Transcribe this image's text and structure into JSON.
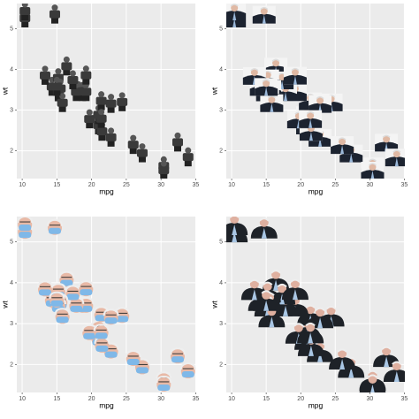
{
  "chart_data": [
    {
      "type": "scatter",
      "marker": "standing-figure",
      "xlabel": "mpg",
      "ylabel": "wt",
      "x": [
        21,
        21,
        22.8,
        21.4,
        18.7,
        18.1,
        14.3,
        24.4,
        22.8,
        19.2,
        17.8,
        16.4,
        17.3,
        15.2,
        10.4,
        10.4,
        14.7,
        32.4,
        30.4,
        33.9,
        21.5,
        15.5,
        15.2,
        13.3,
        19.2,
        27.3,
        26,
        30.4,
        15.8,
        19.7,
        15,
        21.4
      ],
      "y": [
        2.62,
        2.875,
        2.32,
        3.215,
        3.44,
        3.46,
        3.57,
        3.19,
        3.15,
        3.44,
        3.44,
        4.07,
        3.73,
        3.78,
        5.25,
        5.424,
        5.345,
        2.2,
        1.615,
        1.835,
        2.465,
        3.52,
        3.435,
        3.84,
        3.845,
        1.935,
        2.14,
        1.513,
        3.17,
        2.77,
        3.57,
        2.78
      ],
      "xlim": [
        9.225,
        35.075
      ],
      "ylim": [
        1.31745,
        5.61955
      ],
      "xticks": [
        10,
        15,
        20,
        25,
        30,
        35
      ],
      "yticks": [
        2,
        3,
        4,
        5
      ],
      "grid": true
    },
    {
      "type": "scatter",
      "marker": "portrait",
      "xlabel": "mpg",
      "ylabel": "wt",
      "x": [
        21,
        21,
        22.8,
        21.4,
        18.7,
        18.1,
        14.3,
        24.4,
        22.8,
        19.2,
        17.8,
        16.4,
        17.3,
        15.2,
        10.4,
        10.4,
        14.7,
        32.4,
        30.4,
        33.9,
        21.5,
        15.5,
        15.2,
        13.3,
        19.2,
        27.3,
        26,
        30.4,
        15.8,
        19.7,
        15,
        21.4
      ],
      "y": [
        2.62,
        2.875,
        2.32,
        3.215,
        3.44,
        3.46,
        3.57,
        3.19,
        3.15,
        3.44,
        3.44,
        4.07,
        3.73,
        3.78,
        5.25,
        5.424,
        5.345,
        2.2,
        1.615,
        1.835,
        2.465,
        3.52,
        3.435,
        3.84,
        3.845,
        1.935,
        2.14,
        1.513,
        3.17,
        2.77,
        3.57,
        2.78
      ],
      "xlim": [
        9.225,
        35.075
      ],
      "ylim": [
        1.31745,
        5.61955
      ],
      "xticks": [
        10,
        15,
        20,
        25,
        30,
        35
      ],
      "yticks": [
        2,
        3,
        4,
        5
      ],
      "grid": true
    },
    {
      "type": "scatter",
      "marker": "masked-face",
      "xlabel": "mpg",
      "ylabel": "wt",
      "x": [
        21,
        21,
        22.8,
        21.4,
        18.7,
        18.1,
        14.3,
        24.4,
        22.8,
        19.2,
        17.8,
        16.4,
        17.3,
        15.2,
        10.4,
        10.4,
        14.7,
        32.4,
        30.4,
        33.9,
        21.5,
        15.5,
        15.2,
        13.3,
        19.2,
        27.3,
        26,
        30.4,
        15.8,
        19.7,
        15,
        21.4
      ],
      "y": [
        2.62,
        2.875,
        2.32,
        3.215,
        3.44,
        3.46,
        3.57,
        3.19,
        3.15,
        3.44,
        3.44,
        4.07,
        3.73,
        3.78,
        5.25,
        5.424,
        5.345,
        2.2,
        1.615,
        1.835,
        2.465,
        3.52,
        3.435,
        3.84,
        3.845,
        1.935,
        2.14,
        1.513,
        3.17,
        2.77,
        3.57,
        2.78
      ],
      "xlim": [
        9.225,
        35.075
      ],
      "ylim": [
        1.31745,
        5.61955
      ],
      "xticks": [
        10,
        15,
        20,
        25,
        30,
        35
      ],
      "yticks": [
        2,
        3,
        4,
        5
      ],
      "grid": true
    },
    {
      "type": "scatter",
      "marker": "bust",
      "xlabel": "mpg",
      "ylabel": "wt",
      "x": [
        21,
        21,
        22.8,
        21.4,
        18.7,
        18.1,
        14.3,
        24.4,
        22.8,
        19.2,
        17.8,
        16.4,
        17.3,
        15.2,
        10.4,
        10.4,
        14.7,
        32.4,
        30.4,
        33.9,
        21.5,
        15.5,
        15.2,
        13.3,
        19.2,
        27.3,
        26,
        30.4,
        15.8,
        19.7,
        15,
        21.4
      ],
      "y": [
        2.62,
        2.875,
        2.32,
        3.215,
        3.44,
        3.46,
        3.57,
        3.19,
        3.15,
        3.44,
        3.44,
        4.07,
        3.73,
        3.78,
        5.25,
        5.424,
        5.345,
        2.2,
        1.615,
        1.835,
        2.465,
        3.52,
        3.435,
        3.84,
        3.845,
        1.935,
        2.14,
        1.513,
        3.17,
        2.77,
        3.57,
        2.78
      ],
      "xlim": [
        9.225,
        35.075
      ],
      "ylim": [
        1.31745,
        5.61955
      ],
      "xticks": [
        10,
        15,
        20,
        25,
        30,
        35
      ],
      "yticks": [
        2,
        3,
        4,
        5
      ],
      "grid": true
    }
  ]
}
